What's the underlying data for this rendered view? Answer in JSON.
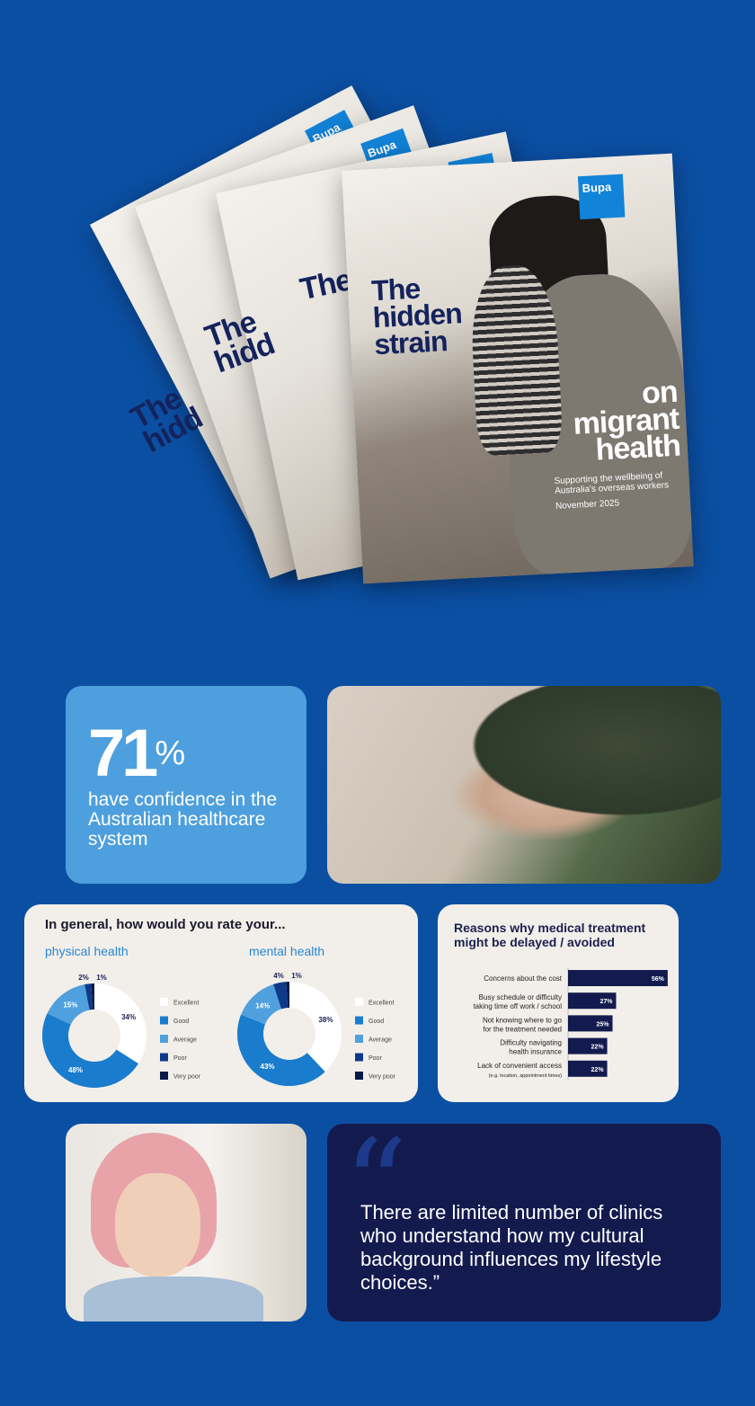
{
  "cover": {
    "brand": "Bupa",
    "title_line1": "The hidden strain",
    "title_line2": "on migrant health",
    "title_partial_1": "The hidd",
    "title_partial_2": "The hidd",
    "title_partial_3": "The hidde",
    "subtitle": "Supporting the wellbeing of Australia's overseas workers",
    "date": "November 2025"
  },
  "stat": {
    "number": "71",
    "unit": "%",
    "text": "have confidence in the Australian healthcare system"
  },
  "quote": {
    "mark": "“",
    "text": "There are limited number of clinics who understand how my cultural background influences my lifestyle choices.”"
  },
  "colors": {
    "background": "#0b4fa3",
    "excellent": "#ffffff",
    "good": "#1a7ccc",
    "average": "#4fa0dd",
    "poor": "#0f3a8a",
    "very_poor": "#0b1a4a",
    "bar": "#131b4e"
  },
  "chart_data": [
    {
      "type": "pie",
      "title": "In general, how would you rate your...",
      "subtitle": "physical health",
      "categories": [
        "Excellent",
        "Good",
        "Average",
        "Poor",
        "Very poor"
      ],
      "values": [
        34,
        48,
        15,
        2,
        1
      ],
      "labels": [
        "34%",
        "48%",
        "15%",
        "2%",
        "1%"
      ],
      "legend": "right"
    },
    {
      "type": "pie",
      "subtitle": "mental health",
      "categories": [
        "Excellent",
        "Good",
        "Average",
        "Poor",
        "Very poor"
      ],
      "values": [
        38,
        43,
        14,
        4,
        1
      ],
      "labels": [
        "38%",
        "43%",
        "14%",
        "4%",
        "1%"
      ],
      "legend": "right"
    },
    {
      "type": "bar",
      "orientation": "horizontal",
      "title": "Reasons why medical treatment might be delayed / avoided",
      "categories": [
        "Concerns about the cost",
        "Busy schedule or difficulty taking time off work / school",
        "Not knowing where to go for the treatment needed",
        "Difficulty navigating health insurance",
        "Lack of convenient access"
      ],
      "category_notes": [
        "",
        "",
        "",
        "",
        "(e.g. location, appointment times)"
      ],
      "values": [
        56,
        27,
        25,
        22,
        22
      ],
      "labels": [
        "56%",
        "27%",
        "25%",
        "22%",
        "22%"
      ]
    }
  ]
}
